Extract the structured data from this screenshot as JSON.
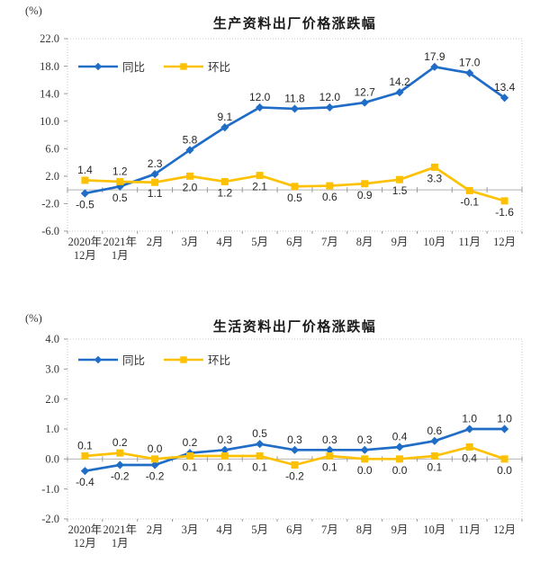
{
  "colors": {
    "tongbi_blue": "#1f6dc6",
    "huanbi_gold": "#fec101",
    "plot_border": "#c6c6c6",
    "zero_axis": "#b5b5b5",
    "tick": "#9a9a9a",
    "axis_text": "#333333",
    "data_label_text": "#262626"
  },
  "chart_data": [
    {
      "type": "line",
      "title": "生产资料出厂价格涨跌幅",
      "unit_label": "(%)",
      "legend_position": "inside-top-left",
      "grid": false,
      "ylim": [
        -6,
        22
      ],
      "ytick_step": 4,
      "tick_format": "one-decimal",
      "categories": [
        "2020年\n12月",
        "2021年\n1月",
        "2月",
        "3月",
        "4月",
        "5月",
        "6月",
        "7月",
        "8月",
        "9月",
        "10月",
        "11月",
        "12月"
      ],
      "series": [
        {
          "name": "同比",
          "color": "#1f6dc6",
          "marker": "diamond",
          "values": [
            -0.5,
            0.5,
            2.3,
            5.8,
            9.1,
            12.0,
            11.8,
            12.0,
            12.7,
            14.2,
            17.9,
            17.0,
            13.4
          ]
        },
        {
          "name": "环比",
          "color": "#fec101",
          "marker": "square",
          "values": [
            1.4,
            1.2,
            1.1,
            2.0,
            1.2,
            2.1,
            0.5,
            0.6,
            0.9,
            1.5,
            3.3,
            -0.1,
            -1.6
          ]
        }
      ]
    },
    {
      "type": "line",
      "title": "生活资料出厂价格涨跌幅",
      "unit_label": "(%)",
      "legend_position": "inside-top-left",
      "grid": false,
      "ylim": [
        -2,
        4
      ],
      "ytick_step": 1,
      "tick_format": "one-decimal",
      "categories": [
        "2020年\n12月",
        "2021年\n1月",
        "2月",
        "3月",
        "4月",
        "5月",
        "6月",
        "7月",
        "8月",
        "9月",
        "10月",
        "11月",
        "12月"
      ],
      "series": [
        {
          "name": "同比",
          "color": "#1f6dc6",
          "marker": "diamond",
          "values": [
            -0.4,
            -0.2,
            -0.2,
            0.2,
            0.3,
            0.5,
            0.3,
            0.3,
            0.3,
            0.4,
            0.6,
            1.0,
            1.0
          ]
        },
        {
          "name": "环比",
          "color": "#fec101",
          "marker": "square",
          "values": [
            0.1,
            0.2,
            0.0,
            0.1,
            0.1,
            0.1,
            -0.2,
            0.1,
            0.0,
            0.0,
            0.1,
            0.4,
            0.0
          ]
        }
      ]
    }
  ]
}
